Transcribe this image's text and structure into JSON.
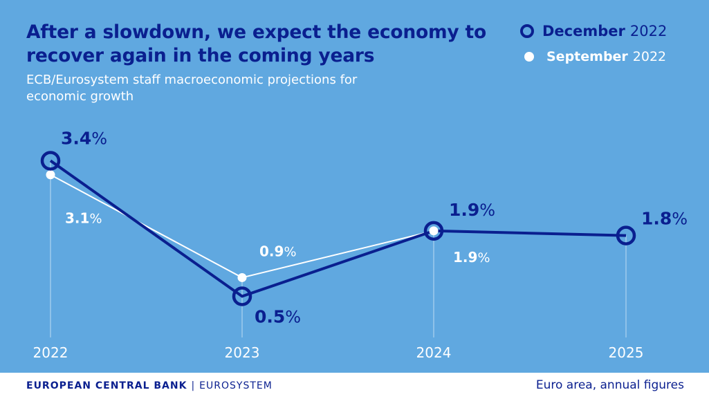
{
  "header": {
    "title": "After a slowdown, we expect the economy to recover again in the coming years",
    "subtitle": "ECB/Eurosystem staff macroeconomic projections for economic growth"
  },
  "legend": {
    "december": {
      "name": "December",
      "year": "2022"
    },
    "september": {
      "name": "September",
      "year": "2022"
    }
  },
  "footer": {
    "bank": "EUROPEAN CENTRAL BANK",
    "separator": "|",
    "system": "EUROSYSTEM",
    "note": "Euro area, annual figures"
  },
  "colors": {
    "background": "#60a8e0",
    "december": "#0a1f8f",
    "september": "#ffffff"
  },
  "chart_data": {
    "type": "line",
    "title": "After a slowdown, we expect the economy to recover again in the coming years",
    "subtitle": "ECB/Eurosystem staff macroeconomic projections for economic growth",
    "x": [
      "2022",
      "2023",
      "2024",
      "2025"
    ],
    "ylim": [
      0,
      3.6
    ],
    "grid": false,
    "legend_position": "top-right",
    "series": [
      {
        "name": "December 2022",
        "values": [
          3.4,
          0.5,
          1.9,
          1.8
        ],
        "labels": [
          "3.4",
          "0.5",
          "1.9",
          "1.8"
        ],
        "marker": "ring"
      },
      {
        "name": "September 2022",
        "values": [
          3.1,
          0.9,
          1.9,
          null
        ],
        "labels": [
          "3.1",
          "0.9",
          "1.9",
          null
        ],
        "marker": "dot"
      }
    ],
    "unit": "%"
  }
}
